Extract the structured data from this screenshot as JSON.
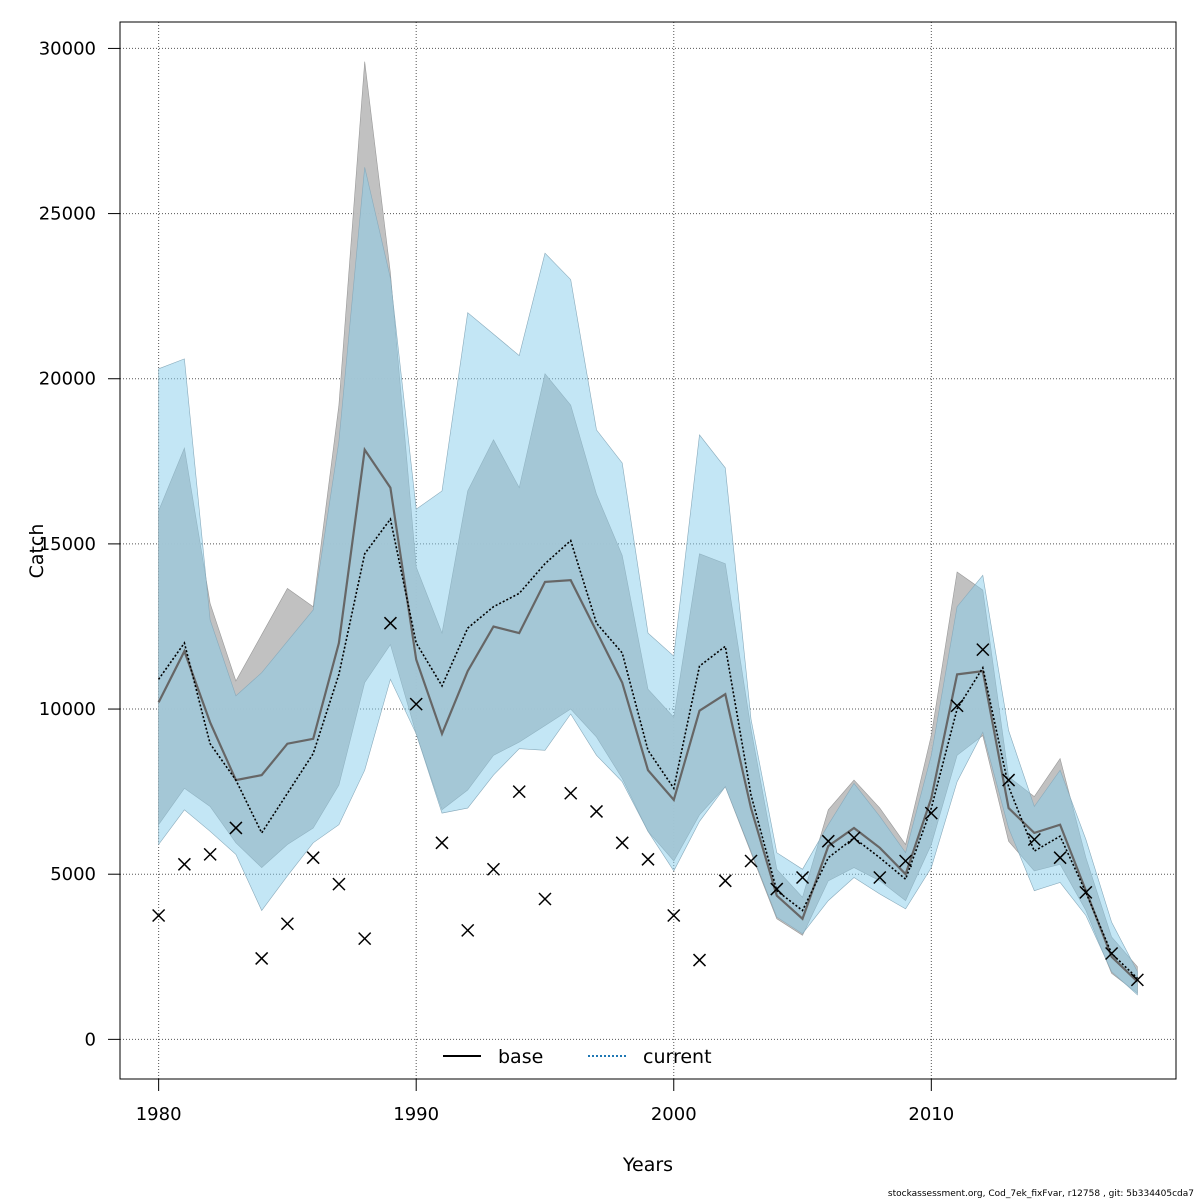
{
  "chart_data": {
    "type": "line",
    "xlabel": "Years",
    "ylabel": "Catch",
    "xlim": [
      1978.5,
      2019.5
    ],
    "ylim": [
      -1200,
      30800
    ],
    "xticks": [
      1980,
      1990,
      2000,
      2010
    ],
    "yticks": [
      0,
      5000,
      10000,
      15000,
      20000,
      25000,
      30000
    ],
    "grid": true,
    "legend_position": "bottom-center",
    "colors": {
      "base_band": "#bebebe",
      "current_band": "#87ceeb",
      "base_line": "#000000",
      "current_line": "#000000",
      "current_legend_line": "#1f78b4"
    },
    "x": [
      1980,
      1981,
      1982,
      1983,
      1984,
      1985,
      1986,
      1987,
      1988,
      1989,
      1990,
      1991,
      1992,
      1993,
      1994,
      1995,
      1996,
      1997,
      1998,
      1999,
      2000,
      2001,
      2002,
      2003,
      2004,
      2005,
      2006,
      2007,
      2008,
      2009,
      2010,
      2011,
      2012,
      2013,
      2014,
      2015,
      2016,
      2017,
      2018
    ],
    "series": [
      {
        "name": "base",
        "style": "solid",
        "values": [
          10200,
          11750,
          9600,
          7850,
          8000,
          8950,
          9100,
          12000,
          17850,
          16700,
          11500,
          9250,
          11150,
          12500,
          12300,
          13850,
          13900,
          12350,
          10800,
          8150,
          7250,
          9950,
          10450,
          7000,
          4350,
          3650,
          5850,
          6400,
          5800,
          5000,
          7300,
          11050,
          11150,
          7000,
          6250,
          6500,
          4500,
          2500,
          1750
        ],
        "lower": [
          6500,
          7600,
          7050,
          5950,
          5200,
          5900,
          6400,
          7700,
          10800,
          11950,
          9250,
          6950,
          7550,
          8600,
          9000,
          9500,
          10000,
          9150,
          7900,
          6300,
          5400,
          6800,
          7650,
          5650,
          3650,
          3150,
          4800,
          5200,
          4800,
          4200,
          5900,
          8600,
          9200,
          6000,
          5100,
          5300,
          3900,
          2000,
          1400
        ],
        "upper": [
          16000,
          17900,
          13200,
          10850,
          12250,
          13650,
          13100,
          19200,
          29600,
          23200,
          14300,
          12300,
          16600,
          18150,
          16700,
          20150,
          19200,
          16500,
          14650,
          10600,
          9750,
          14700,
          14400,
          9400,
          5150,
          4300,
          6950,
          7850,
          7000,
          5900,
          9200,
          14150,
          13600,
          7950,
          7350,
          8500,
          5500,
          3100,
          2200
        ]
      },
      {
        "name": "current",
        "style": "dotted",
        "values": [
          10900,
          12000,
          8950,
          7850,
          6250,
          7450,
          8650,
          11050,
          14700,
          15750,
          12000,
          10700,
          12450,
          13100,
          13500,
          14400,
          15100,
          12600,
          11700,
          8750,
          7600,
          11300,
          11900,
          7400,
          4500,
          3900,
          5500,
          6100,
          5500,
          4850,
          7000,
          10000,
          11250,
          7650,
          5700,
          6150,
          4450,
          2600,
          1850
        ]
      }
    ],
    "current_lower": [
      5900,
      6950,
      6300,
      5600,
      3900,
      4950,
      5950,
      6500,
      8150,
      10900,
      9250,
      6850,
      7000,
      8000,
      8800,
      8750,
      9850,
      8600,
      7800,
      6300,
      5100,
      6600,
      7650,
      5700,
      3700,
      3200,
      4200,
      4900,
      4400,
      3950,
      5200,
      7800,
      9300,
      6400,
      4500,
      4750,
      3750,
      2050,
      1350
    ],
    "current_upper": [
      20300,
      20600,
      12700,
      10400,
      11100,
      12050,
      13000,
      18100,
      26400,
      23050,
      16050,
      16600,
      22000,
      21350,
      20700,
      23800,
      23000,
      18450,
      17450,
      12300,
      11600,
      18300,
      17300,
      9700,
      5650,
      5150,
      6500,
      7750,
      6750,
      5650,
      8600,
      13100,
      14050,
      9350,
      7050,
      8150,
      6050,
      3550,
      2050
    ],
    "observed_x": [
      1980,
      1981,
      1982,
      1983,
      1984,
      1985,
      1986,
      1987,
      1988,
      1989,
      1990,
      1991,
      1992,
      1993,
      1994,
      1995,
      1996,
      1997,
      1998,
      1999,
      2000,
      2001,
      2002,
      2003,
      2004,
      2005,
      2006,
      2007,
      2008,
      2009,
      2010,
      2011,
      2012,
      2013,
      2014,
      2015,
      2016,
      2017,
      2018
    ],
    "observed_values": [
      3750,
      5300,
      5600,
      6400,
      2450,
      3500,
      5500,
      4700,
      3050,
      12600,
      10150,
      5950,
      3300,
      5150,
      7500,
      4250,
      7450,
      6900,
      5950,
      5450,
      3750,
      2400,
      4800,
      5400,
      4550,
      4900,
      6000,
      6100,
      4900,
      5400,
      6850,
      10100,
      11800,
      7850,
      6050,
      5500,
      4450,
      2600,
      1800
    ]
  },
  "footer": "stockassessment.org, Cod_7ek_fixFvar, r12758 , git: 5b334405cda7"
}
